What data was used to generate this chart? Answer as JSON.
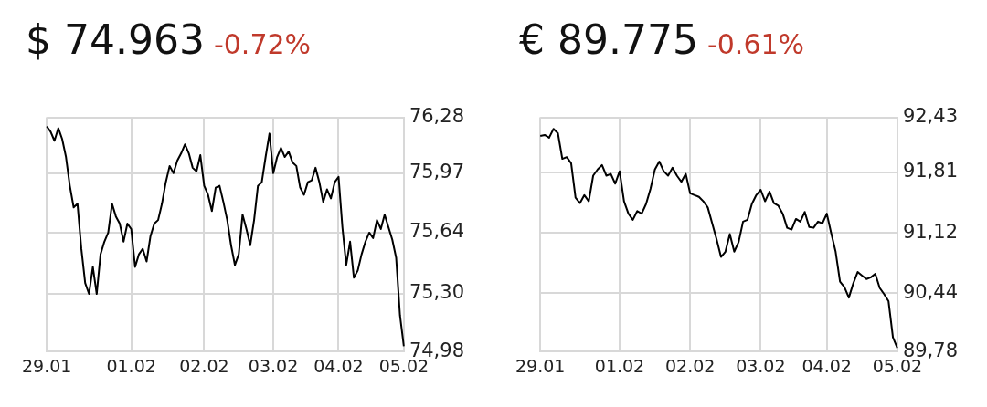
{
  "chart_data": [
    {
      "type": "line",
      "title": "$ 74.963",
      "subtitle": "-0.72%",
      "color": "#000000",
      "marker": "none",
      "grid": true,
      "legend": false,
      "categories": [
        "29.01",
        null,
        null,
        null,
        null,
        null,
        null,
        null,
        null,
        null,
        null,
        null,
        null,
        null,
        null,
        null,
        null,
        null,
        null,
        null,
        null,
        null,
        "01.02",
        null,
        null,
        null,
        null,
        null,
        null,
        null,
        null,
        null,
        null,
        null,
        null,
        null,
        null,
        null,
        null,
        null,
        null,
        "02.02",
        null,
        null,
        null,
        null,
        null,
        null,
        null,
        null,
        null,
        null,
        null,
        null,
        null,
        null,
        null,
        null,
        null,
        "03.02",
        null,
        null,
        null,
        null,
        null,
        null,
        null,
        null,
        null,
        null,
        null,
        null,
        null,
        null,
        null,
        null,
        "04.02",
        null,
        null,
        null,
        null,
        null,
        null,
        null,
        null,
        null,
        null,
        null,
        null,
        null,
        null,
        null,
        null,
        "05.02"
      ],
      "values": [
        76.23,
        76.2,
        76.15,
        76.22,
        76.16,
        76.06,
        75.9,
        75.78,
        75.8,
        75.55,
        75.36,
        75.3,
        75.45,
        75.3,
        75.52,
        75.59,
        75.64,
        75.8,
        75.73,
        75.69,
        75.59,
        75.69,
        75.66,
        75.45,
        75.52,
        75.55,
        75.48,
        75.62,
        75.69,
        75.71,
        75.8,
        75.92,
        76.01,
        75.97,
        76.04,
        76.08,
        76.13,
        76.08,
        76.0,
        75.98,
        76.07,
        75.9,
        75.85,
        75.76,
        75.89,
        75.9,
        75.81,
        75.71,
        75.57,
        75.46,
        75.52,
        75.74,
        75.66,
        75.57,
        75.71,
        75.9,
        75.92,
        76.06,
        76.19,
        75.97,
        76.06,
        76.11,
        76.06,
        76.09,
        76.03,
        76.01,
        75.89,
        75.85,
        75.92,
        75.93,
        76.0,
        75.92,
        75.81,
        75.88,
        75.83,
        75.92,
        75.95,
        75.67,
        75.46,
        75.59,
        75.39,
        75.43,
        75.52,
        75.59,
        75.64,
        75.61,
        75.71,
        75.66,
        75.74,
        75.67,
        75.6,
        75.5,
        75.18,
        75.01
      ],
      "ylim": [
        74.98,
        76.28
      ],
      "yticks": [
        {
          "value": 74.98,
          "label": "74,98"
        },
        {
          "value": 75.3,
          "label": "75,30"
        },
        {
          "value": 75.64,
          "label": "75,64"
        },
        {
          "value": 75.97,
          "label": "75,97"
        },
        {
          "value": 76.28,
          "label": "76,28"
        }
      ]
    },
    {
      "type": "line",
      "title": "€ 89.775",
      "subtitle": "-0.61%",
      "color": "#000000",
      "marker": "none",
      "grid": true,
      "legend": false,
      "categories": [
        "29.01",
        null,
        null,
        null,
        null,
        null,
        null,
        null,
        null,
        null,
        null,
        null,
        null,
        null,
        null,
        null,
        null,
        null,
        "01.02",
        null,
        null,
        null,
        null,
        null,
        null,
        null,
        null,
        null,
        null,
        null,
        null,
        null,
        null,
        null,
        "02.02",
        null,
        null,
        null,
        null,
        null,
        null,
        null,
        null,
        null,
        null,
        null,
        null,
        null,
        null,
        null,
        "03.02",
        null,
        null,
        null,
        null,
        null,
        null,
        null,
        null,
        null,
        null,
        null,
        null,
        null,
        null,
        "04.02",
        null,
        null,
        null,
        null,
        null,
        null,
        null,
        null,
        null,
        null,
        null,
        null,
        null,
        null,
        null,
        "05.02"
      ],
      "values": [
        92.22,
        92.23,
        92.2,
        92.3,
        92.25,
        91.96,
        91.98,
        91.91,
        91.52,
        91.46,
        91.55,
        91.48,
        91.77,
        91.84,
        91.89,
        91.77,
        91.79,
        91.68,
        91.82,
        91.48,
        91.34,
        91.27,
        91.37,
        91.34,
        91.45,
        91.62,
        91.84,
        91.93,
        91.82,
        91.77,
        91.86,
        91.77,
        91.7,
        91.79,
        91.57,
        91.55,
        91.53,
        91.48,
        91.41,
        91.23,
        91.05,
        90.85,
        90.91,
        91.11,
        90.91,
        91.02,
        91.25,
        91.27,
        91.45,
        91.55,
        91.61,
        91.48,
        91.59,
        91.46,
        91.43,
        91.34,
        91.18,
        91.16,
        91.28,
        91.25,
        91.36,
        91.19,
        91.18,
        91.25,
        91.23,
        91.34,
        91.12,
        90.91,
        90.57,
        90.51,
        90.39,
        90.55,
        90.68,
        90.64,
        90.6,
        90.62,
        90.66,
        90.5,
        90.43,
        90.35,
        89.94,
        89.82
      ],
      "ylim": [
        89.78,
        92.43
      ],
      "yticks": [
        {
          "value": 89.78,
          "label": "89,78"
        },
        {
          "value": 90.44,
          "label": "90,44"
        },
        {
          "value": 91.12,
          "label": "91,12"
        },
        {
          "value": 91.81,
          "label": "91,81"
        },
        {
          "value": 92.43,
          "label": "92,43"
        }
      ]
    }
  ]
}
